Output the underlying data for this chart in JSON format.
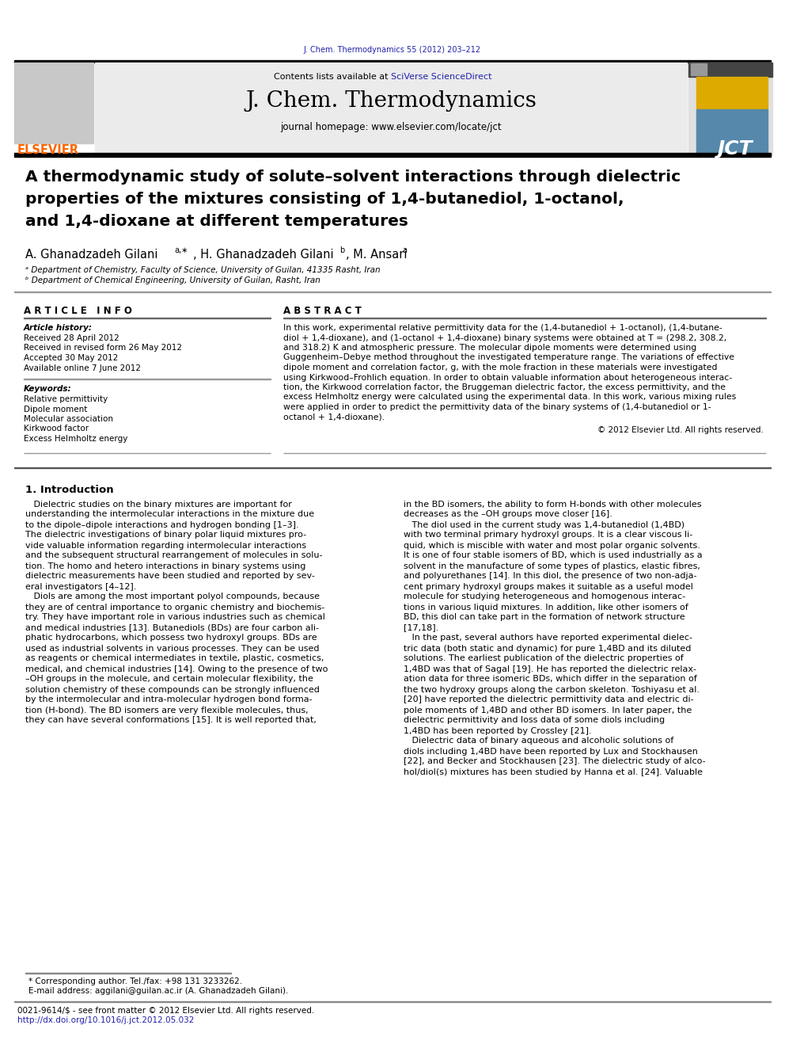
{
  "journal_ref": "J. Chem. Thermodynamics 55 (2012) 203–212",
  "journal_ref_color": "#2222AA",
  "header_bg_color": "#EBEBEB",
  "journal_name": "J. Chem. Thermodynamics",
  "journal_homepage": "journal homepage: www.elsevier.com/locate/jct",
  "elsevier_color": "#FF6600",
  "elsevier_text": "ELSEVIER",
  "contents_text": "Contents lists available at ",
  "sciverse_text": "SciVerse ScienceDirect",
  "sciverse_color": "#2222AA",
  "article_title_line1": "A thermodynamic study of solute–solvent interactions through dielectric",
  "article_title_line2": "properties of the mixtures consisting of 1,4-butanediol, 1-octanol,",
  "article_title_line3": "and 1,4-dioxane at different temperatures",
  "author_main": "A. Ghanadzadeh Gilani",
  "author_sup1": "a,∗",
  "author_mid": ", H. Ghanadzadeh Gilani",
  "author_sup2": "b",
  "author_end": ", M. Ansari",
  "author_sup3": "a",
  "affil_a": "ᵃ Department of Chemistry, Faculty of Science, University of Guilan, 41335 Rasht, Iran",
  "affil_b": "ᵇ Department of Chemical Engineering, University of Guilan, Rasht, Iran",
  "article_info_title": "A R T I C L E   I N F O",
  "article_history_title": "Article history:",
  "article_history": [
    "Received 28 April 2012",
    "Received in revised form 26 May 2012",
    "Accepted 30 May 2012",
    "Available online 7 June 2012"
  ],
  "keywords_title": "Keywords:",
  "keywords": [
    "Relative permittivity",
    "Dipole moment",
    "Molecular association",
    "Kirkwood factor",
    "Excess Helmholtz energy"
  ],
  "abstract_title": "A B S T R A C T",
  "abstract_lines": [
    "In this work, experimental relative permittivity data for the (1,4-butanediol + 1-octanol), (1,4-butane-",
    "diol + 1,4-dioxane), and (1-octanol + 1,4-dioxane) binary systems were obtained at T = (298.2, 308.2,",
    "and 318.2) K and atmospheric pressure. The molecular dipole moments were determined using",
    "Guggenheim–Debye method throughout the investigated temperature range. The variations of effective",
    "dipole moment and correlation factor, g, with the mole fraction in these materials were investigated",
    "using Kirkwood–Frohlich equation. In order to obtain valuable information about heterogeneous interac-",
    "tion, the Kirkwood correlation factor, the Bruggeman dielectric factor, the excess permittivity, and the",
    "excess Helmholtz energy were calculated using the experimental data. In this work, various mixing rules",
    "were applied in order to predict the permittivity data of the binary systems of (1,4-butanediol or 1-",
    "octanol + 1,4-dioxane)."
  ],
  "copyright_text": "© 2012 Elsevier Ltd. All rights reserved.",
  "intro_title": "1. Introduction",
  "intro_col1_lines": [
    "   Dielectric studies on the binary mixtures are important for",
    "understanding the intermolecular interactions in the mixture due",
    "to the dipole–dipole interactions and hydrogen bonding [1–3].",
    "The dielectric investigations of binary polar liquid mixtures pro-",
    "vide valuable information regarding intermolecular interactions",
    "and the subsequent structural rearrangement of molecules in solu-",
    "tion. The homo and hetero interactions in binary systems using",
    "dielectric measurements have been studied and reported by sev-",
    "eral investigators [4–12].",
    "   Diols are among the most important polyol compounds, because",
    "they are of central importance to organic chemistry and biochemis-",
    "try. They have important role in various industries such as chemical",
    "and medical industries [13]. Butanediols (BDs) are four carbon ali-",
    "phatic hydrocarbons, which possess two hydroxyl groups. BDs are",
    "used as industrial solvents in various processes. They can be used",
    "as reagents or chemical intermediates in textile, plastic, cosmetics,",
    "medical, and chemical industries [14]. Owing to the presence of two",
    "–OH groups in the molecule, and certain molecular flexibility, the",
    "solution chemistry of these compounds can be strongly influenced",
    "by the intermolecular and intra-molecular hydrogen bond forma-",
    "tion (H-bond). The BD isomers are very flexible molecules, thus,",
    "they can have several conformations [15]. It is well reported that,"
  ],
  "intro_col2_lines": [
    "in the BD isomers, the ability to form H-bonds with other molecules",
    "decreases as the –OH groups move closer [16].",
    "   The diol used in the current study was 1,4-butanediol (1,4BD)",
    "with two terminal primary hydroxyl groups. It is a clear viscous li-",
    "quid, which is miscible with water and most polar organic solvents.",
    "It is one of four stable isomers of BD, which is used industrially as a",
    "solvent in the manufacture of some types of plastics, elastic fibres,",
    "and polyurethanes [14]. In this diol, the presence of two non-adja-",
    "cent primary hydroxyl groups makes it suitable as a useful model",
    "molecule for studying heterogeneous and homogenous interac-",
    "tions in various liquid mixtures. In addition, like other isomers of",
    "BD, this diol can take part in the formation of network structure",
    "[17,18].",
    "   In the past, several authors have reported experimental dielec-",
    "tric data (both static and dynamic) for pure 1,4BD and its diluted",
    "solutions. The earliest publication of the dielectric properties of",
    "1,4BD was that of Sagal [19]. He has reported the dielectric relax-",
    "ation data for three isomeric BDs, which differ in the separation of",
    "the two hydroxy groups along the carbon skeleton. Toshiyasu et al.",
    "[20] have reported the dielectric permittivity data and electric di-",
    "pole moments of 1,4BD and other BD isomers. In later paper, the",
    "dielectric permittivity and loss data of some diols including",
    "1,4BD has been reported by Crossley [21].",
    "   Dielectric data of binary aqueous and alcoholic solutions of",
    "diols including 1,4BD have been reported by Lux and Stockhausen",
    "[22], and Becker and Stockhausen [23]. The dielectric study of alco-",
    "hol/diol(s) mixtures has been studied by Hanna et al. [24]. Valuable"
  ],
  "footnote_star": "* Corresponding author. Tel./fax: +98 131 3233262.",
  "footnote_email": "E-mail address: aggilani@guilan.ac.ir (A. Ghanadzadeh Gilani).",
  "footnote_issn": "0021-9614/$ - see front matter © 2012 Elsevier Ltd. All rights reserved.",
  "footnote_doi": "http://dx.doi.org/10.1016/j.jct.2012.05.032",
  "footer_doi_color": "#2222AA"
}
